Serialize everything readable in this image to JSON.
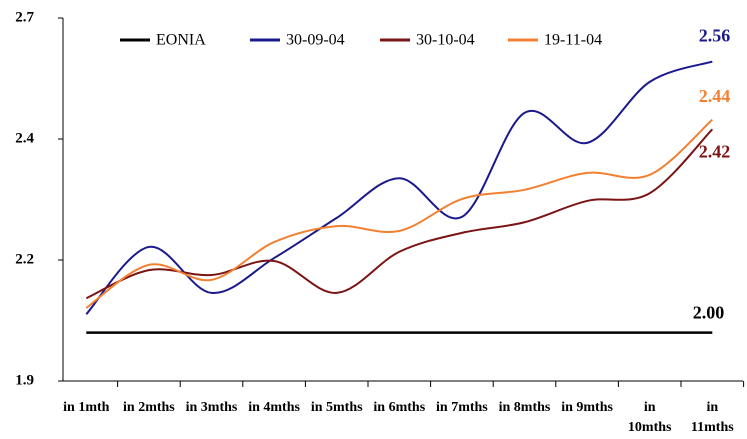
{
  "chart_data": {
    "type": "line",
    "categories": [
      "in 1mth",
      "in 2mths",
      "in 3mths",
      "in 4mths",
      "in 5mths",
      "in 6mths",
      "in 7mths",
      "in 8mths",
      "in 9mths",
      "in 10mths",
      "in 11mths"
    ],
    "series": [
      {
        "name": "EONIA",
        "color": "#000000",
        "values": [
          2.0,
          2.0,
          2.0,
          2.0,
          2.0,
          2.0,
          2.0,
          2.0,
          2.0,
          2.0,
          2.0
        ],
        "value_labels": [
          null,
          null,
          null,
          null,
          null,
          null,
          null,
          null,
          null,
          null,
          "2.00"
        ]
      },
      {
        "name": "30-09-04",
        "color": "#1a1a8c",
        "values": [
          2.038,
          2.177,
          2.082,
          2.154,
          2.237,
          2.319,
          2.239,
          2.454,
          2.392,
          2.518,
          2.56
        ],
        "value_labels": [
          null,
          null,
          null,
          null,
          null,
          null,
          null,
          null,
          null,
          null,
          "2.56"
        ]
      },
      {
        "name": "30-10-04",
        "color": "#7b1414",
        "values": [
          2.071,
          2.129,
          2.119,
          2.148,
          2.082,
          2.167,
          2.206,
          2.228,
          2.272,
          2.288,
          2.42
        ],
        "value_labels": [
          null,
          null,
          null,
          null,
          null,
          null,
          null,
          null,
          null,
          null,
          "2.42"
        ]
      },
      {
        "name": "19-11-04",
        "color": "#f28033",
        "values": [
          2.051,
          2.14,
          2.109,
          2.187,
          2.22,
          2.21,
          2.276,
          2.295,
          2.33,
          2.326,
          2.44
        ],
        "value_labels": [
          null,
          null,
          null,
          null,
          null,
          null,
          null,
          null,
          null,
          null,
          "2.44"
        ]
      }
    ],
    "ylim": [
      1.9,
      2.65
    ],
    "yticks": [
      1.9,
      {
        "value": 2.15,
        "label": "2.2"
      },
      2.4,
      {
        "value": 2.65,
        "label": "2.7"
      }
    ],
    "grid": false,
    "legend": "top"
  }
}
